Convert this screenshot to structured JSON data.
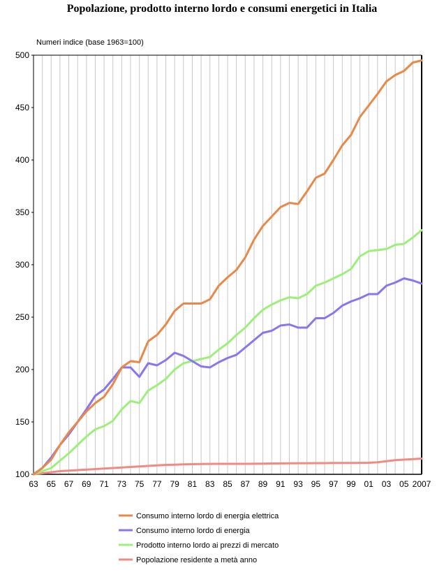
{
  "chart_data": {
    "type": "line",
    "title": "Popolazione, prodotto interno lordo e consumi energetici in Italia",
    "ylabel": "Numeri indice (base 1963=100)",
    "xlabel": "",
    "ylim": [
      100,
      500
    ],
    "yticks": [
      100,
      150,
      200,
      250,
      300,
      350,
      400,
      450,
      500
    ],
    "x": [
      1963,
      1964,
      1965,
      1966,
      1967,
      1968,
      1969,
      1970,
      1971,
      1972,
      1973,
      1974,
      1975,
      1976,
      1977,
      1978,
      1979,
      1980,
      1981,
      1982,
      1983,
      1984,
      1985,
      1986,
      1987,
      1988,
      1989,
      1990,
      1991,
      1992,
      1993,
      1994,
      1995,
      1996,
      1997,
      1998,
      1999,
      2000,
      2001,
      2002,
      2003,
      2004,
      2005,
      2006,
      2007
    ],
    "xticks": [
      {
        "year": 1963,
        "label": "63"
      },
      {
        "year": 1965,
        "label": "65"
      },
      {
        "year": 1967,
        "label": "67"
      },
      {
        "year": 1969,
        "label": "69"
      },
      {
        "year": 1971,
        "label": "71"
      },
      {
        "year": 1973,
        "label": "73"
      },
      {
        "year": 1975,
        "label": "75"
      },
      {
        "year": 1977,
        "label": "77"
      },
      {
        "year": 1979,
        "label": "79"
      },
      {
        "year": 1981,
        "label": "81"
      },
      {
        "year": 1983,
        "label": "83"
      },
      {
        "year": 1985,
        "label": "85"
      },
      {
        "year": 1987,
        "label": "87"
      },
      {
        "year": 1989,
        "label": "89"
      },
      {
        "year": 1991,
        "label": "91"
      },
      {
        "year": 1993,
        "label": "93"
      },
      {
        "year": 1995,
        "label": "95"
      },
      {
        "year": 1997,
        "label": "97"
      },
      {
        "year": 1999,
        "label": "99"
      },
      {
        "year": 2001,
        "label": "01"
      },
      {
        "year": 2003,
        "label": "03"
      },
      {
        "year": 2005,
        "label": "05"
      },
      {
        "year": 2007,
        "label": "2007"
      }
    ],
    "grid": "vertical",
    "legend_position": "bottom",
    "series": [
      {
        "name": "Consumo interno lordo di energia elettrica",
        "color": "#e8894a",
        "values": [
          100,
          106,
          114,
          128,
          140,
          150,
          160,
          168,
          174,
          186,
          202,
          208,
          207,
          227,
          233,
          243,
          256,
          263,
          263,
          263,
          267,
          280,
          288,
          295,
          307,
          324,
          337,
          346,
          355,
          359,
          358,
          370,
          383,
          387,
          400,
          414,
          424,
          441,
          452,
          463,
          475,
          481,
          485,
          493,
          495
        ]
      },
      {
        "name": "Consumo interno lordo di energia",
        "color": "#8a74f0",
        "values": [
          100,
          106,
          116,
          128,
          138,
          150,
          162,
          175,
          181,
          191,
          202,
          202,
          193,
          206,
          204,
          209,
          216,
          213,
          208,
          203,
          202,
          207,
          211,
          214,
          221,
          228,
          235,
          237,
          242,
          243,
          240,
          240,
          249,
          249,
          254,
          261,
          265,
          268,
          272,
          272,
          280,
          283,
          287,
          285,
          282
        ]
      },
      {
        "name": "Prodotto interno lordo ai prezzi di mercato",
        "color": "#9cf07a",
        "values": [
          100,
          103,
          106,
          113,
          120,
          128,
          136,
          143,
          146,
          151,
          162,
          170,
          168,
          180,
          185,
          191,
          200,
          206,
          208,
          210,
          212,
          219,
          225,
          233,
          240,
          249,
          257,
          262,
          266,
          269,
          268,
          272,
          280,
          283,
          287,
          291,
          296,
          308,
          313,
          314,
          315,
          319,
          320,
          326,
          333
        ]
      },
      {
        "name": "Popolazione residente a metà anno",
        "color": "#f08a82",
        "values": [
          100,
          101,
          102,
          103,
          103.5,
          104,
          104.5,
          105,
          105.5,
          106,
          106.5,
          107,
          107.5,
          108,
          108.5,
          109,
          109.2,
          109.5,
          109.7,
          109.8,
          109.9,
          110,
          110,
          110,
          110,
          110.1,
          110.2,
          110.3,
          110.4,
          110.5,
          110.6,
          110.6,
          110.7,
          110.7,
          110.8,
          110.8,
          110.8,
          110.9,
          111,
          111.5,
          112.5,
          113.5,
          114,
          114.5,
          115
        ]
      }
    ]
  }
}
